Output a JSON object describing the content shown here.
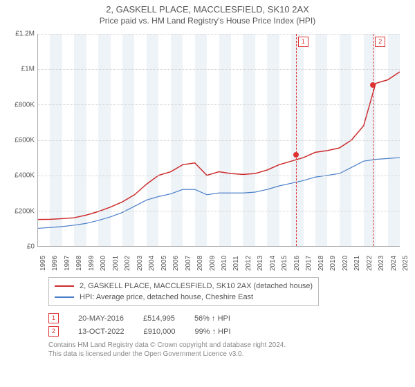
{
  "title": "2, GASKELL PLACE, MACCLESFIELD, SK10 2AX",
  "subtitle": "Price paid vs. HM Land Registry's House Price Index (HPI)",
  "chart": {
    "type": "line",
    "x_years": [
      1995,
      1996,
      1997,
      1998,
      1999,
      2000,
      2001,
      2002,
      2003,
      2004,
      2005,
      2006,
      2007,
      2008,
      2009,
      2010,
      2011,
      2012,
      2013,
      2014,
      2015,
      2016,
      2017,
      2018,
      2019,
      2020,
      2021,
      2022,
      2023,
      2024,
      2025
    ],
    "ylim": [
      0,
      1200000
    ],
    "ytick_step": 200000,
    "ytick_labels": [
      "£0",
      "£200K",
      "£400K",
      "£600K",
      "£800K",
      "£1M",
      "£1.2M"
    ],
    "grid_color": "#d0d0d0",
    "background_color": "#ffffff",
    "band_color": "#eef3f8",
    "vline_color": "#d33",
    "series": [
      {
        "name": "2, GASKELL PLACE, MACCLESFIELD, SK10 2AX (detached house)",
        "color": "#cc2b2b",
        "width": 1.5,
        "values": [
          150000,
          151000,
          155000,
          160000,
          175000,
          195000,
          220000,
          250000,
          290000,
          350000,
          400000,
          420000,
          460000,
          470000,
          400000,
          420000,
          410000,
          405000,
          410000,
          430000,
          460000,
          480000,
          500000,
          530000,
          540000,
          555000,
          600000,
          680000,
          920000,
          940000,
          985000
        ]
      },
      {
        "name": "HPI: Average price, detached house, Cheshire East",
        "color": "#4a7ec8",
        "width": 1.2,
        "values": [
          100000,
          105000,
          110000,
          118000,
          128000,
          145000,
          165000,
          190000,
          225000,
          260000,
          280000,
          295000,
          320000,
          320000,
          290000,
          300000,
          300000,
          300000,
          305000,
          320000,
          340000,
          355000,
          370000,
          390000,
          400000,
          410000,
          445000,
          480000,
          490000,
          495000,
          500000
        ]
      }
    ],
    "markers": [
      {
        "label": "1",
        "year": 2016.38,
        "price": 514995
      },
      {
        "label": "2",
        "year": 2022.78,
        "price": 910000
      }
    ]
  },
  "legend": {
    "s1": "2, GASKELL PLACE, MACCLESFIELD, SK10 2AX (detached house)",
    "s2": "HPI: Average price, detached house, Cheshire East"
  },
  "transactions": [
    {
      "label": "1",
      "date": "20-MAY-2016",
      "price": "£514,995",
      "delta": "56% ↑ HPI"
    },
    {
      "label": "2",
      "date": "13-OCT-2022",
      "price": "£910,000",
      "delta": "99% ↑ HPI"
    }
  ],
  "footer1": "Contains HM Land Registry data © Crown copyright and database right 2024.",
  "footer2": "This data is licensed under the Open Government Licence v3.0.",
  "colors": {
    "text": "#555555",
    "muted": "#888888",
    "border": "#bbbbbb"
  }
}
